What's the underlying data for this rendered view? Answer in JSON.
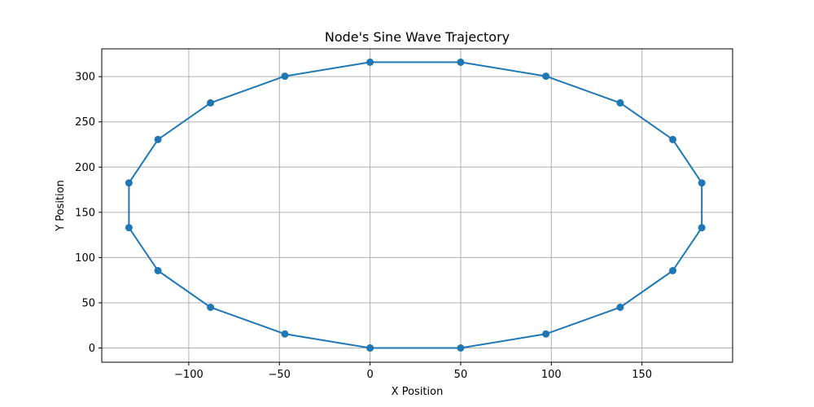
{
  "chart_data": {
    "type": "line",
    "title": "Node's Sine Wave Trajectory",
    "xlabel": "X Position",
    "ylabel": "Y Position",
    "xlim": [
      -148,
      200
    ],
    "ylim": [
      -15.75,
      330.75
    ],
    "xticks": [
      -100,
      -50,
      0,
      50,
      100,
      150
    ],
    "xtick_labels": [
      "−100",
      "−50",
      "0",
      "50",
      "100",
      "150"
    ],
    "yticks": [
      0,
      50,
      100,
      150,
      200,
      250,
      300
    ],
    "ytick_labels": [
      "0",
      "50",
      "100",
      "150",
      "200",
      "250",
      "300"
    ],
    "grid": true,
    "marker": "circle",
    "color": "#1f77b4",
    "series": [
      {
        "x": [
          0,
          50,
          97,
          138,
          167,
          183,
          183,
          167,
          138,
          97,
          50,
          0,
          -47,
          -88,
          -117,
          -133,
          -133,
          -117,
          -88,
          -47,
          0
        ],
        "y": [
          0,
          0,
          15.5,
          45,
          85.5,
          133,
          182.5,
          230.5,
          271,
          300.5,
          316,
          316,
          300.5,
          271,
          230.5,
          182.5,
          133,
          85.5,
          45,
          15.5,
          0
        ]
      }
    ]
  }
}
